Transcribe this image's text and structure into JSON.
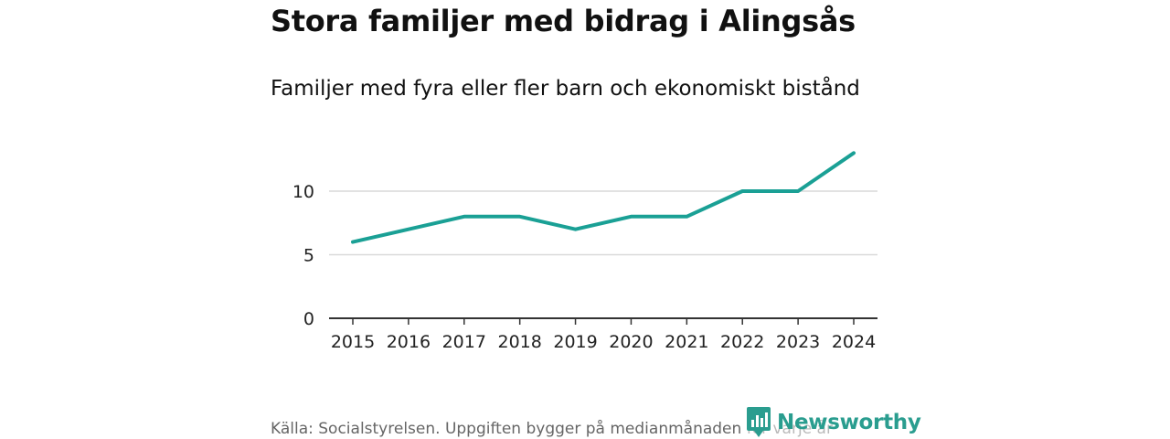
{
  "header": {
    "title": "Stora familjer med bidrag i Alingsås",
    "subtitle": "Familjer med fyra eller fler barn och ekonomiskt bistånd"
  },
  "footer": {
    "source": "Källa: Socialstyrelsen. Uppgiften bygger på medianmånaden för varje år",
    "brand": "Newsworthy",
    "brand_icon": "newsworthy-logo-icon"
  },
  "colors": {
    "line": "#1aa095",
    "grid": "#d9d9d9",
    "axis": "#333333",
    "brand": "#2a9d8f"
  },
  "chart_data": {
    "type": "line",
    "title": "Stora familjer med bidrag i Alingsås",
    "subtitle": "Familjer med fyra eller fler barn och ekonomiskt bistånd",
    "xlabel": "",
    "ylabel": "",
    "x": [
      "2015",
      "2016",
      "2017",
      "2018",
      "2019",
      "2020",
      "2021",
      "2022",
      "2023",
      "2024"
    ],
    "series": [
      {
        "values": [
          6,
          7,
          8,
          8,
          7,
          8,
          8,
          10,
          10,
          13
        ]
      }
    ],
    "y_ticks": [
      "0",
      "5",
      "10"
    ],
    "ylim": [
      0,
      14
    ],
    "grid": true
  }
}
